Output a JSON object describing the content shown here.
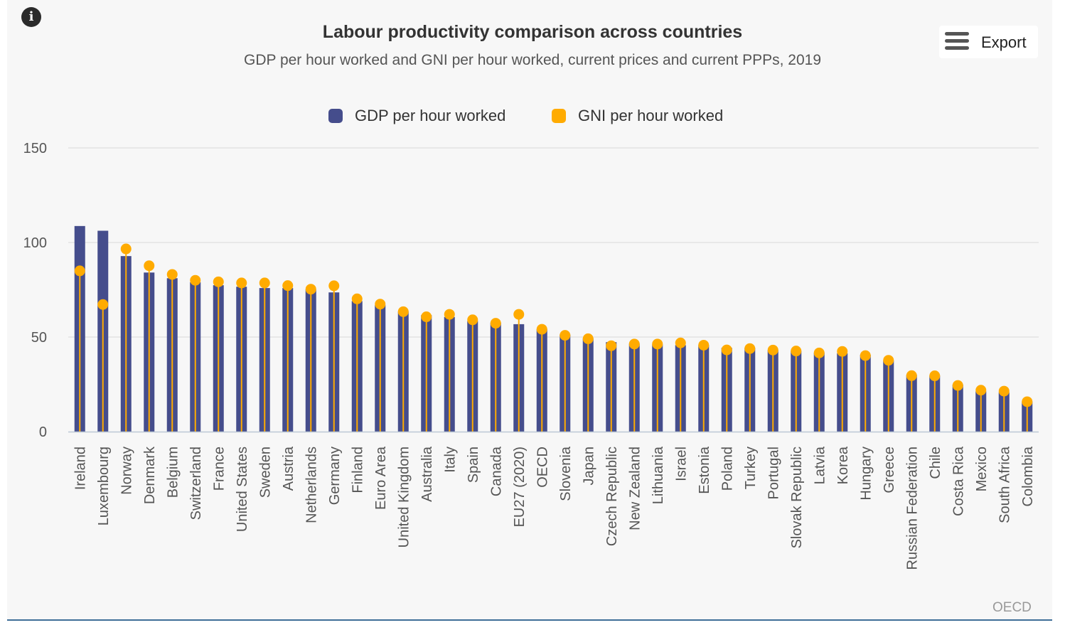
{
  "header": {
    "title": "Labour productivity comparison across countries",
    "subtitle": "GDP per hour worked and GNI per hour worked, current prices and current PPPs, 2019",
    "info_icon": "info-icon",
    "export_label": "Export",
    "export_icon": "hamburger-menu-icon"
  },
  "legend": {
    "gdp_label": "GDP per hour worked",
    "gni_label": "GNI per hour worked"
  },
  "credits": "OECD",
  "colors": {
    "gdp": "#454d8c",
    "gni": "#ffab00",
    "grid": "#d8d8d8",
    "axis_text": "#555555"
  },
  "chart_data": {
    "type": "bar",
    "title": "Labour productivity comparison across countries",
    "subtitle": "GDP per hour worked and GNI per hour worked, current prices and current PPPs, 2019",
    "xlabel": "",
    "ylabel": "",
    "ylim": [
      0,
      150
    ],
    "yticks": [
      "0",
      "50",
      "100",
      "150"
    ],
    "grid": true,
    "legend_position": "top-center",
    "categories": [
      "Ireland",
      "Luxembourg",
      "Norway",
      "Denmark",
      "Belgium",
      "Switzerland",
      "France",
      "United States",
      "Sweden",
      "Austria",
      "Netherlands",
      "Germany",
      "Finland",
      "Euro Area",
      "United Kingdom",
      "Australia",
      "Italy",
      "Spain",
      "Canada",
      "EU27 (2020)",
      "OECD",
      "Slovenia",
      "Japan",
      "Czech Republic",
      "New Zealand",
      "Lithuania",
      "Israel",
      "Estonia",
      "Poland",
      "Turkey",
      "Portugal",
      "Slovak Republic",
      "Latvia",
      "Korea",
      "Hungary",
      "Greece",
      "Russian Federation",
      "Chile",
      "Costa Rica",
      "Mexico",
      "South Africa",
      "Colombia"
    ],
    "series": [
      {
        "name": "GDP per hour worked",
        "type": "bar",
        "values": [
          108.7,
          106.2,
          92.8,
          84.1,
          81.1,
          79.0,
          77.4,
          76.6,
          75.9,
          75.9,
          75.2,
          73.6,
          69.0,
          66.9,
          63.5,
          61.6,
          60.6,
          58.5,
          57.6,
          56.8,
          54.2,
          51.3,
          49.3,
          47.3,
          46.5,
          46.1,
          45.7,
          45.7,
          44.3,
          44.3,
          43.1,
          42.7,
          41.7,
          41.4,
          40.6,
          37.6,
          29.9,
          29.6,
          24.8,
          21.3,
          20.8,
          15.9
        ]
      },
      {
        "name": "GNI per hour worked",
        "type": "lollipop",
        "values": [
          85.0,
          67.2,
          96.6,
          87.7,
          83.1,
          80.0,
          79.2,
          78.6,
          78.6,
          77.2,
          75.3,
          77.1,
          70.2,
          67.4,
          63.4,
          60.7,
          62.0,
          59.1,
          57.3,
          62.0,
          54.1,
          50.9,
          49.1,
          45.4,
          46.3,
          46.3,
          46.9,
          45.7,
          43.2,
          43.9,
          43.1,
          42.6,
          41.6,
          42.4,
          40.2,
          37.7,
          29.6,
          29.5,
          24.4,
          21.9,
          21.4,
          15.8
        ]
      }
    ]
  }
}
